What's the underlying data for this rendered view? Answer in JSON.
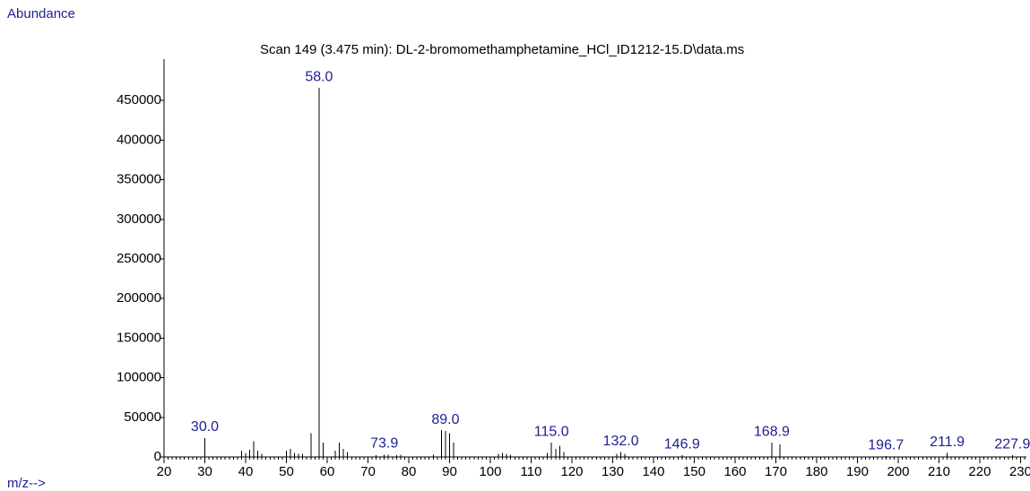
{
  "chart_data": {
    "type": "stem",
    "title": "Scan 149 (3.475 min): DL-2-bromomethamphetamine_HCl_ID1212-15.D\\data.ms",
    "y_label": "Abundance",
    "x_label": "m/z-->",
    "x": [
      30,
      39,
      40,
      41,
      42,
      43,
      44,
      50,
      51,
      52,
      53,
      54,
      56,
      58,
      59,
      62,
      63,
      64,
      65,
      72,
      74,
      75,
      77,
      78,
      86,
      88,
      89,
      90,
      91,
      102,
      103,
      104,
      105,
      114,
      115,
      116,
      117,
      118,
      131,
      132,
      133,
      147,
      169,
      171,
      197,
      212,
      228
    ],
    "values": [
      24000,
      8000,
      5000,
      9000,
      20000,
      8000,
      4000,
      8000,
      10000,
      5000,
      4000,
      4000,
      30000,
      466000,
      18000,
      8000,
      18000,
      10000,
      6000,
      2000,
      3000,
      3000,
      2000,
      3000,
      3000,
      34000,
      33000,
      30000,
      18000,
      4000,
      5000,
      4000,
      3000,
      5000,
      18000,
      10000,
      14000,
      6000,
      4000,
      6000,
      4000,
      2000,
      18000,
      16000,
      1000,
      5000,
      2000
    ],
    "color": "#000000",
    "peak_labels": [
      {
        "value": 30,
        "label": "30.0"
      },
      {
        "value": 58,
        "label": "58.0"
      },
      {
        "value": 74,
        "label": "73.9"
      },
      {
        "value": 89,
        "label": "89.0"
      },
      {
        "value": 115,
        "label": "115.0"
      },
      {
        "value": 132,
        "label": "132.0"
      },
      {
        "value": 147,
        "label": "146.9"
      },
      {
        "value": 169,
        "label": "168.9"
      },
      {
        "value": 197,
        "label": "196.7"
      },
      {
        "value": 212,
        "label": "211.9"
      },
      {
        "value": 228,
        "label": "227.9"
      }
    ],
    "label_color": "#1e1e96",
    "xlim": [
      20,
      231
    ],
    "ylim": [
      0,
      500000
    ],
    "xticks": [
      20,
      30,
      40,
      50,
      60,
      70,
      80,
      90,
      100,
      110,
      120,
      130,
      140,
      150,
      160,
      170,
      180,
      190,
      200,
      210,
      220,
      230
    ],
    "xminor_step": 1,
    "yticks": [
      0,
      50000,
      100000,
      150000,
      200000,
      250000,
      300000,
      350000,
      400000,
      450000
    ]
  }
}
